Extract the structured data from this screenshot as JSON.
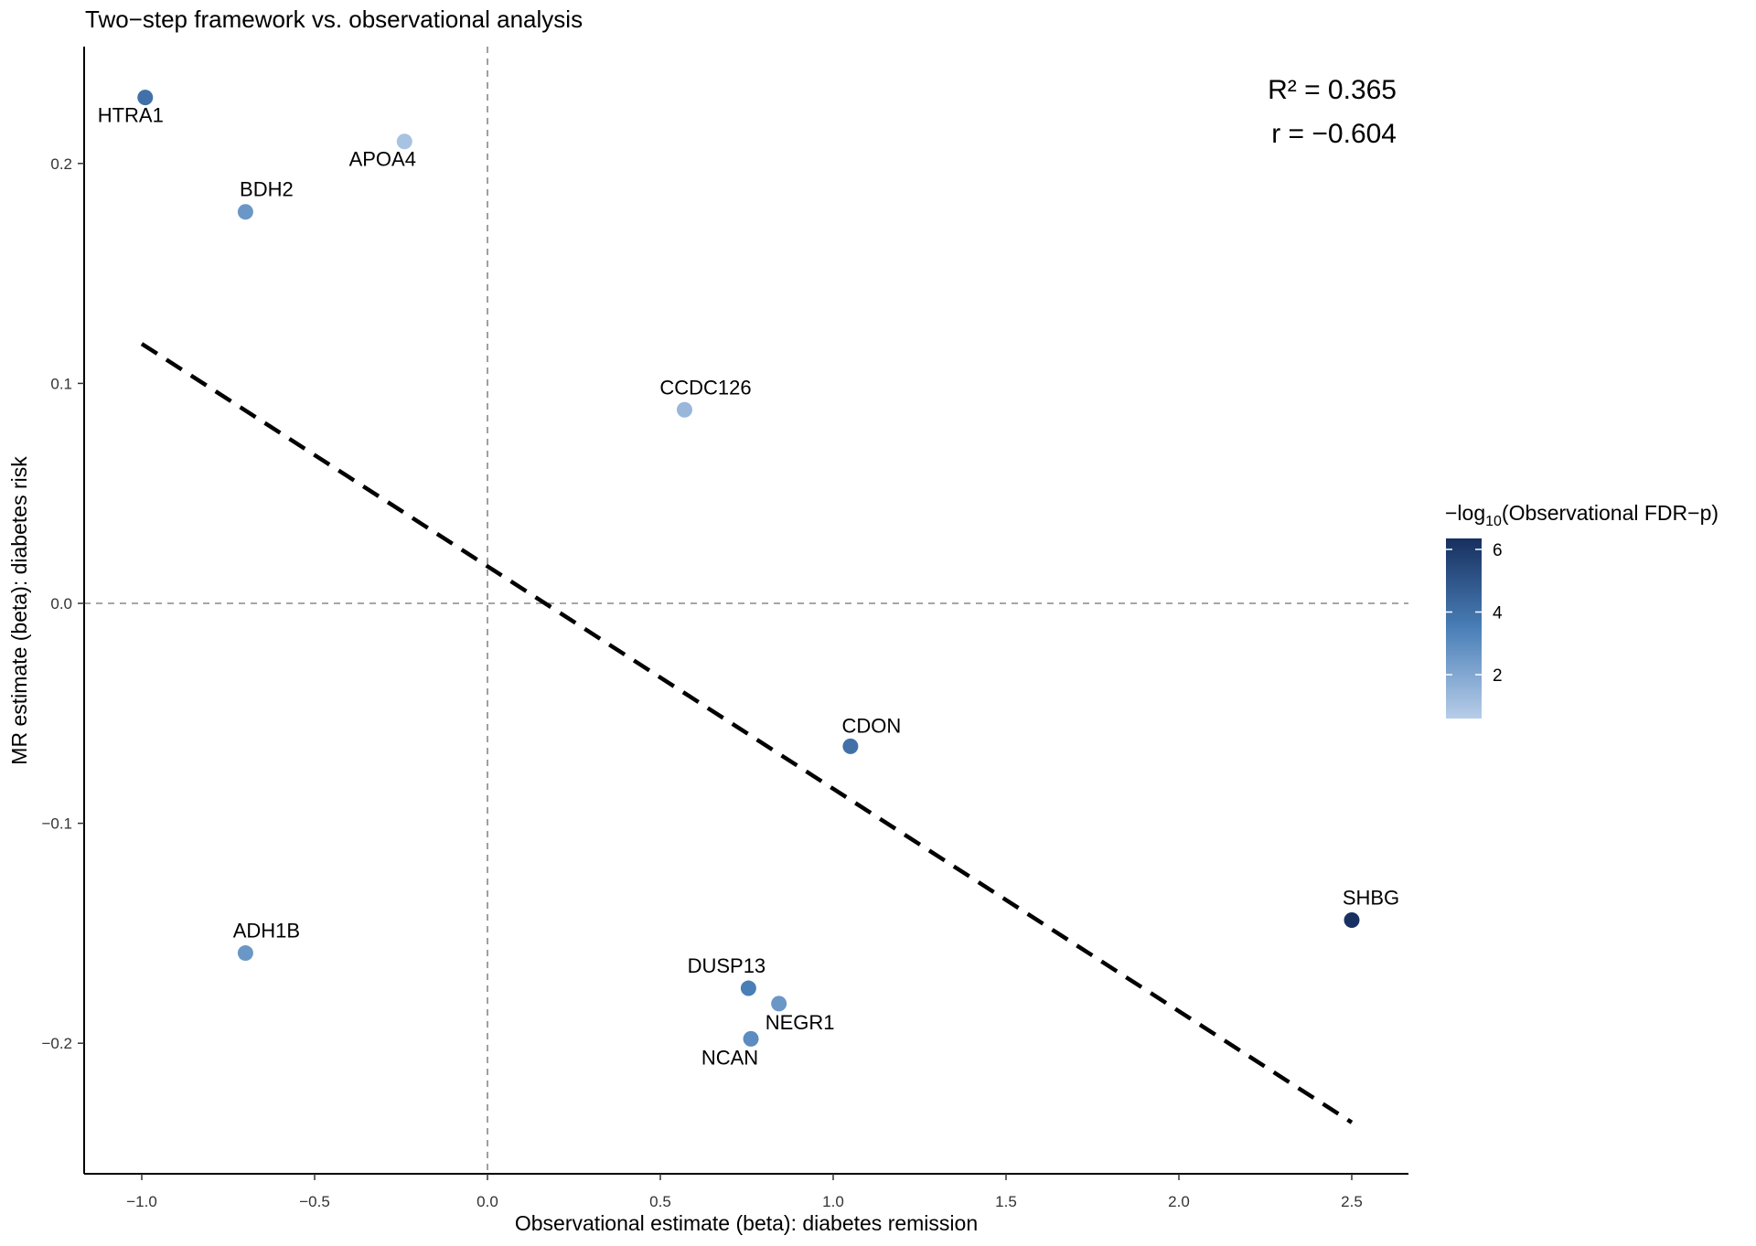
{
  "chart_data": {
    "type": "scatter",
    "title": "Two−step framework vs. observational analysis",
    "xlabel": "Observational estimate (beta): diabetes remission",
    "ylabel": "MR estimate (beta): diabetes risk",
    "xlim": [
      -1.18,
      2.65
    ],
    "ylim": [
      -0.258,
      0.253
    ],
    "xticks": [
      -1.0,
      -0.5,
      0.0,
      0.5,
      1.0,
      1.5,
      2.0,
      2.5
    ],
    "xtick_labels": [
      "−1.0",
      "−0.5",
      "0.0",
      "0.5",
      "1.0",
      "1.5",
      "2.0",
      "2.5"
    ],
    "yticks": [
      0.2,
      0.1,
      0.0,
      -0.1,
      -0.2
    ],
    "ytick_labels": [
      "0.2",
      "0.1",
      "0.0",
      "−0.1",
      "−0.2"
    ],
    "grid": false,
    "reference_lines": {
      "x": 0,
      "y": 0
    },
    "points": [
      {
        "label": "HTRA1",
        "x": -0.99,
        "y": 0.23,
        "fdr": 4.0
      },
      {
        "label": "APOA4",
        "x": -0.24,
        "y": 0.21,
        "fdr": 1.0
      },
      {
        "label": "BDH2",
        "x": -0.7,
        "y": 0.178,
        "fdr": 2.6
      },
      {
        "label": "CCDC126",
        "x": 0.57,
        "y": 0.088,
        "fdr": 1.4
      },
      {
        "label": "CDON",
        "x": 1.05,
        "y": -0.065,
        "fdr": 4.0
      },
      {
        "label": "SHBG",
        "x": 2.5,
        "y": -0.144,
        "fdr": 6.3
      },
      {
        "label": "ADH1B",
        "x": -0.7,
        "y": -0.159,
        "fdr": 2.6
      },
      {
        "label": "DUSP13",
        "x": 0.755,
        "y": -0.175,
        "fdr": 3.5
      },
      {
        "label": "NEGR1",
        "x": 0.843,
        "y": -0.182,
        "fdr": 2.6
      },
      {
        "label": "NCAN",
        "x": 0.762,
        "y": -0.198,
        "fdr": 3.0
      }
    ],
    "regression_line": {
      "x": [
        -1.0,
        2.5
      ],
      "y": [
        0.118,
        -0.236
      ]
    },
    "annotations": [
      "R² = 0.365",
      "r = −0.604"
    ],
    "legend": {
      "title_prefix": "−log",
      "title_sub": "10",
      "title_suffix": "(Observational FDR−p)",
      "range": [
        0.6,
        6.35
      ],
      "ticks": [
        6,
        4,
        2
      ],
      "tick_labels": [
        "6",
        "4",
        "2"
      ],
      "placement": "right",
      "low_color": "#b7cde8",
      "high_color": "#17305f"
    }
  }
}
